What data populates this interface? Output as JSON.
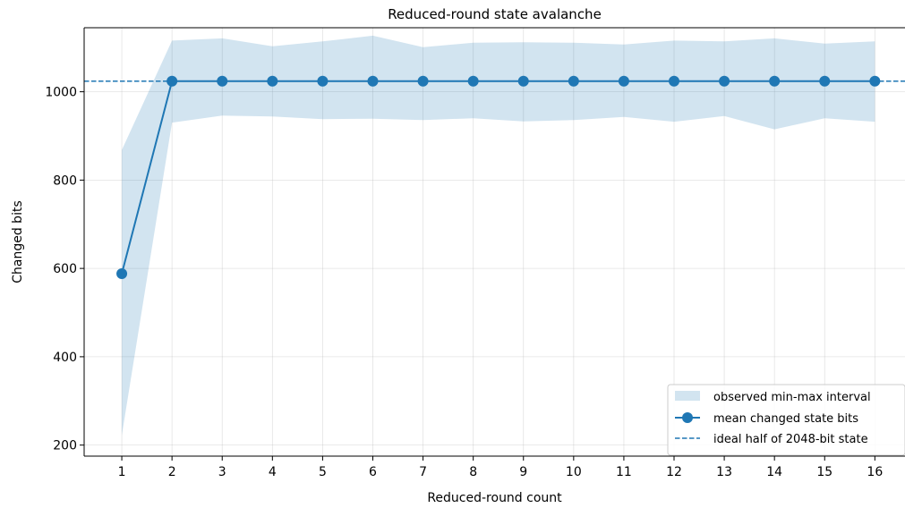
{
  "chart_data": {
    "type": "line",
    "title": "Reduced-round state avalanche",
    "xlabel": "Reduced-round count",
    "ylabel": "Changed bits",
    "x": [
      1,
      2,
      3,
      4,
      5,
      6,
      7,
      8,
      9,
      10,
      11,
      12,
      13,
      14,
      15,
      16
    ],
    "xticks": [
      "1",
      "2",
      "3",
      "4",
      "5",
      "6",
      "7",
      "8",
      "9",
      "10",
      "11",
      "12",
      "13",
      "14",
      "15",
      "16"
    ],
    "xlim": [
      0.25,
      16.6
    ],
    "yticks": [
      200,
      400,
      600,
      800,
      1000
    ],
    "ylim": [
      175,
      1145
    ],
    "grid": true,
    "legend_position": "lower-right",
    "series": [
      {
        "name": "mean changed state bits",
        "kind": "line-markers",
        "color": "#1f77b4",
        "values": [
          588,
          1024,
          1024,
          1024,
          1024,
          1024,
          1024,
          1024,
          1024,
          1024,
          1024,
          1024,
          1024,
          1024,
          1024,
          1024
        ]
      },
      {
        "name": "observed min-max interval",
        "kind": "band",
        "color": "#1f77b4",
        "lower": [
          222,
          930,
          946,
          944,
          938,
          939,
          936,
          940,
          933,
          936,
          943,
          932,
          945,
          915,
          940,
          932
        ],
        "upper": [
          868,
          1116,
          1121,
          1103,
          1114,
          1127,
          1101,
          1111,
          1112,
          1111,
          1107,
          1116,
          1114,
          1121,
          1109,
          1114
        ]
      },
      {
        "name": "ideal half of 2048-bit state",
        "kind": "hline",
        "color": "#1f77b4",
        "value": 1024
      }
    ]
  }
}
